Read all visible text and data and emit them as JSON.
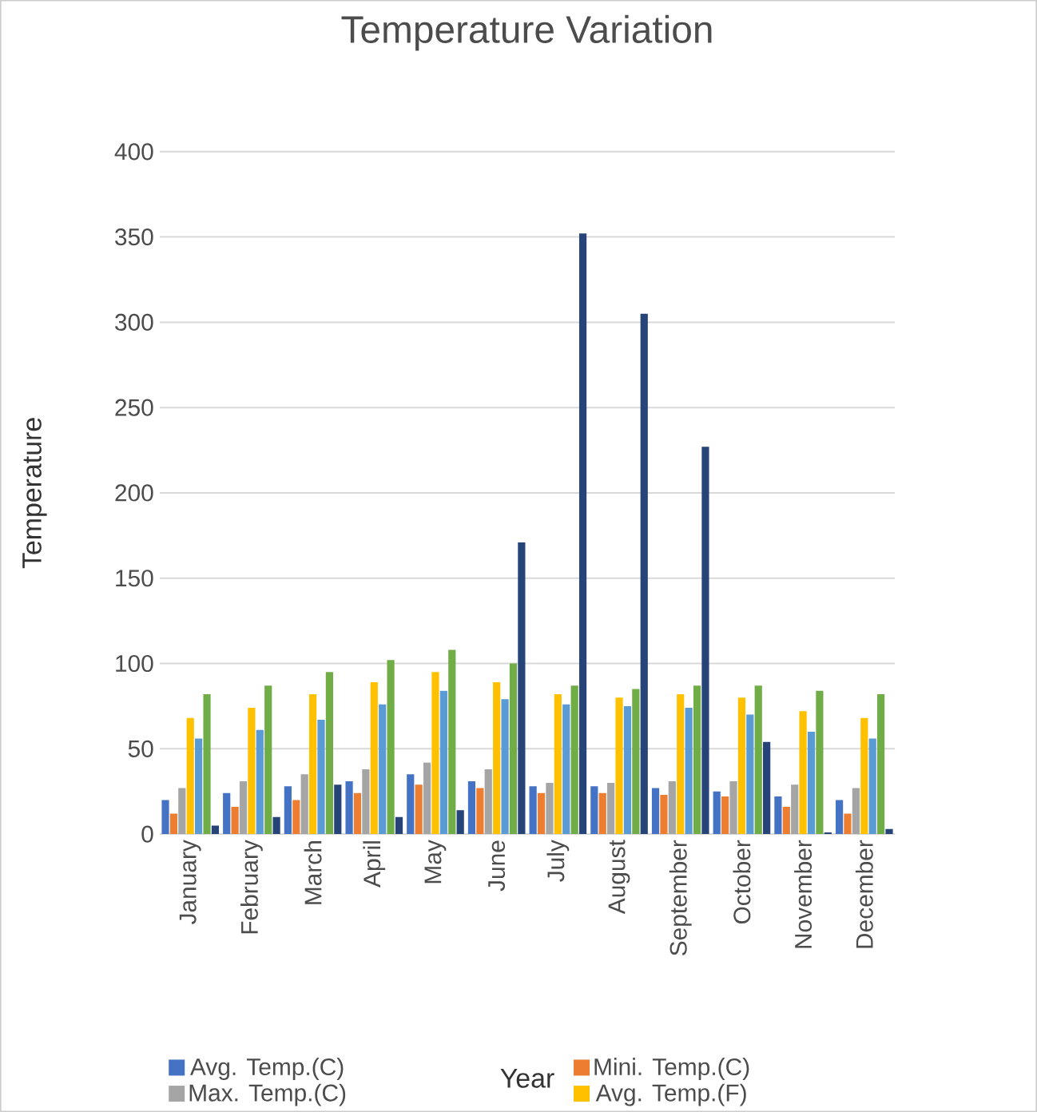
{
  "chart_data": {
    "type": "bar",
    "title": "Temperature Variation",
    "xlabel": "Year",
    "ylabel": "Temperature",
    "categories": [
      "January",
      "February",
      "March",
      "April",
      "May",
      "June",
      "July",
      "August",
      "September",
      "October",
      "November",
      "December"
    ],
    "series": [
      {
        "name": "Avg. Temp.(C)",
        "color": "#4472c4",
        "values": [
          20,
          24,
          28,
          31,
          35,
          31,
          28,
          28,
          27,
          25,
          22,
          20
        ]
      },
      {
        "name": "Mini. Temp.(C)",
        "color": "#ed7d31",
        "values": [
          12,
          16,
          20,
          24,
          29,
          27,
          24,
          24,
          23,
          22,
          16,
          12
        ]
      },
      {
        "name": "Max. Temp.(C)",
        "color": "#a5a5a5",
        "values": [
          27,
          31,
          35,
          38,
          42,
          38,
          30,
          30,
          31,
          31,
          29,
          27
        ]
      },
      {
        "name": "Avg. Temp.(F)",
        "color": "#ffc000",
        "values": [
          68,
          74,
          82,
          89,
          95,
          89,
          82,
          80,
          82,
          80,
          72,
          68
        ]
      },
      {
        "color": "#5b9bd5",
        "values": [
          56,
          61,
          67,
          76,
          84,
          79,
          76,
          75,
          74,
          70,
          60,
          56
        ]
      },
      {
        "color": "#70ad47",
        "values": [
          82,
          87,
          95,
          102,
          108,
          100,
          87,
          85,
          87,
          87,
          84,
          82
        ]
      },
      {
        "color": "#264478",
        "values": [
          5,
          10,
          29,
          10,
          14,
          171,
          352,
          305,
          227,
          54,
          1,
          3
        ]
      }
    ],
    "ylim": [
      0,
      400
    ],
    "yticks": [
      0,
      50,
      100,
      150,
      200,
      250,
      300,
      350,
      400
    ],
    "grid": "y",
    "legend": "bottom"
  }
}
